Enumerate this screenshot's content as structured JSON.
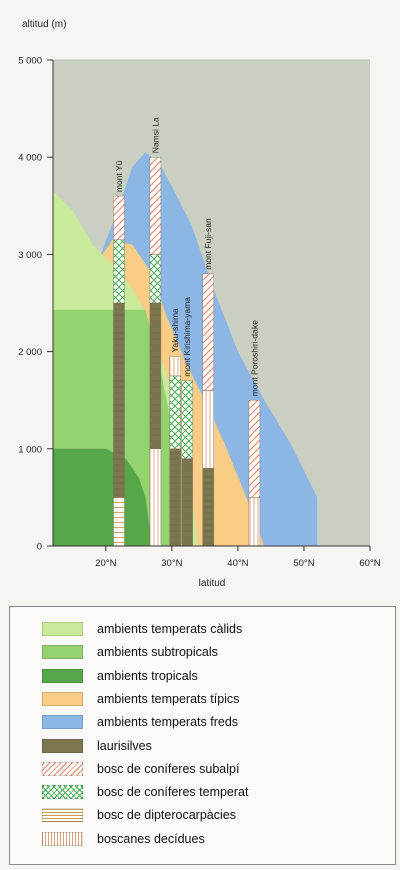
{
  "chart_data": {
    "type": "area",
    "ylabel": "altitud (m)",
    "xlabel": "latitud",
    "x_ticks": [
      "20°N",
      "30°N",
      "40°N",
      "50°N",
      "60°N"
    ],
    "y_ticks": [
      "0",
      "1 000",
      "2 000",
      "3 000",
      "4 000",
      "5 000"
    ],
    "xlim": [
      12,
      60
    ],
    "ylim": [
      0,
      5000
    ],
    "zones": [
      {
        "name": "ambients temperats freds",
        "color": "#8cb6e4",
        "points": [
          [
            19,
            2950
          ],
          [
            22,
            3500
          ],
          [
            24,
            3900
          ],
          [
            26,
            4050
          ],
          [
            28,
            3950
          ],
          [
            30,
            3700
          ],
          [
            33,
            3300
          ],
          [
            36,
            2700
          ],
          [
            40,
            2000
          ],
          [
            44,
            1500
          ],
          [
            48,
            1050
          ],
          [
            52,
            500
          ],
          [
            52,
            0
          ],
          [
            19,
            0
          ]
        ]
      },
      {
        "name": "ambients temperats típics",
        "color": "#f9cd85",
        "points": [
          [
            19,
            2950
          ],
          [
            21,
            3150
          ],
          [
            24,
            3100
          ],
          [
            27,
            2800
          ],
          [
            29,
            2400
          ],
          [
            32,
            1900
          ],
          [
            35,
            1500
          ],
          [
            38,
            1050
          ],
          [
            41,
            550
          ],
          [
            44,
            0
          ],
          [
            19,
            0
          ]
        ]
      },
      {
        "name": "ambients temperats càlids",
        "color": "#c9ea9b",
        "points": [
          [
            12,
            3650
          ],
          [
            15,
            3450
          ],
          [
            18,
            3100
          ],
          [
            21,
            2900
          ],
          [
            24,
            2650
          ],
          [
            26,
            2400
          ],
          [
            28,
            2000
          ],
          [
            30,
            1600
          ],
          [
            32,
            1100
          ],
          [
            33,
            500
          ],
          [
            34,
            0
          ],
          [
            12,
            0
          ]
        ]
      },
      {
        "name": "ambients subtropicals",
        "color": "#94d16f",
        "points": [
          [
            12,
            2430
          ],
          [
            26,
            2430
          ],
          [
            28,
            1900
          ],
          [
            29.5,
            1400
          ],
          [
            30.5,
            900
          ],
          [
            31,
            0
          ],
          [
            12,
            0
          ]
        ]
      },
      {
        "name": "ambients tropicals",
        "color": "#56a74a",
        "points": [
          [
            12,
            1000
          ],
          [
            20,
            1000
          ],
          [
            23,
            900
          ],
          [
            25,
            700
          ],
          [
            26,
            500
          ],
          [
            27,
            0
          ],
          [
            12,
            0
          ]
        ]
      }
    ],
    "sites": [
      {
        "name": "mont Yü",
        "lat": 22,
        "peak": 3600,
        "segments": [
          {
            "kind": "dipterocarp",
            "from": 0,
            "to": 500
          },
          {
            "kind": "laurisilva",
            "from": 500,
            "to": 2500
          },
          {
            "kind": "conifer-temperate",
            "from": 2500,
            "to": 3150
          },
          {
            "kind": "conifer-subalpine",
            "from": 3150,
            "to": 3600
          }
        ]
      },
      {
        "name": "Namsi La",
        "lat": 27.5,
        "peak": 4000,
        "segments": [
          {
            "kind": "deciduous",
            "from": 0,
            "to": 1000
          },
          {
            "kind": "laurisilva",
            "from": 1000,
            "to": 2500
          },
          {
            "kind": "conifer-temperate",
            "from": 2500,
            "to": 3000
          },
          {
            "kind": "conifer-subalpine",
            "from": 3000,
            "to": 4000
          }
        ]
      },
      {
        "name": "Yaku-shima",
        "lat": 30.5,
        "peak": 1950,
        "segments": [
          {
            "kind": "laurisilva",
            "from": 0,
            "to": 1000
          },
          {
            "kind": "conifer-temperate",
            "from": 1000,
            "to": 1750
          },
          {
            "kind": "deciduous",
            "from": 1750,
            "to": 1950
          }
        ]
      },
      {
        "name": "mont Kirishima-yama",
        "lat": 32.3,
        "peak": 1700,
        "segments": [
          {
            "kind": "laurisilva",
            "from": 0,
            "to": 900
          },
          {
            "kind": "conifer-temperate",
            "from": 900,
            "to": 1700
          }
        ]
      },
      {
        "name": "mont Fuji-san",
        "lat": 35.5,
        "peak": 2800,
        "segments": [
          {
            "kind": "laurisilva",
            "from": 0,
            "to": 800
          },
          {
            "kind": "deciduous",
            "from": 800,
            "to": 1600
          },
          {
            "kind": "conifer-subalpine",
            "from": 1600,
            "to": 2800
          }
        ]
      },
      {
        "name": "mont Poroshiri-dake",
        "lat": 42.5,
        "peak": 1500,
        "segments": [
          {
            "kind": "deciduous",
            "from": 0,
            "to": 500
          },
          {
            "kind": "conifer-subalpine",
            "from": 500,
            "to": 1500
          }
        ]
      }
    ],
    "legend_placement": "bottom"
  },
  "legend": [
    {
      "key": "warm",
      "label": "ambients temperats càlids",
      "color": "#c9ea9b"
    },
    {
      "key": "subtropical",
      "label": "ambients subtropicals",
      "color": "#94d16f"
    },
    {
      "key": "tropical",
      "label": "ambients tropicals",
      "color": "#56a74a"
    },
    {
      "key": "typical",
      "label": "ambients temperats típics",
      "color": "#f9cd85"
    },
    {
      "key": "cold",
      "label": "ambients temperats freds",
      "color": "#8cb6e4"
    },
    {
      "key": "laurisilva",
      "label": "laurisilves",
      "color": "#7c7650"
    },
    {
      "key": "conifer-subalpine",
      "label": "bosc de coníferes subalpí",
      "color": "#e9836b"
    },
    {
      "key": "conifer-temperate",
      "label": "bosc de coníferes temperat",
      "color": "#49ad55"
    },
    {
      "key": "dipterocarp",
      "label": "bosc de dipterocarpàcies",
      "color": "#c59a55"
    },
    {
      "key": "deciduous",
      "label": "boscanes decídues",
      "color": "#d9a07a"
    }
  ]
}
